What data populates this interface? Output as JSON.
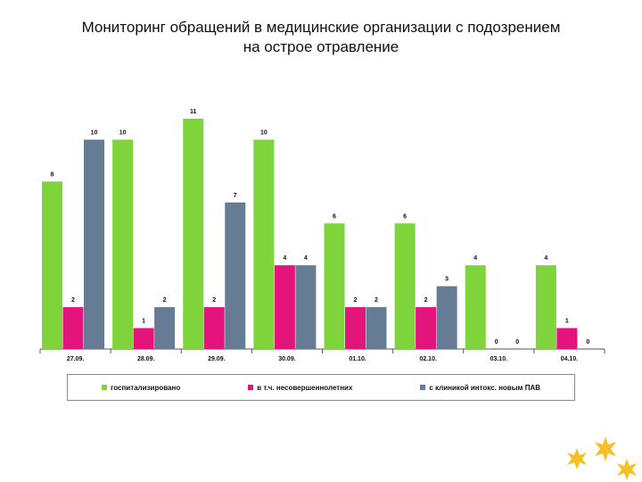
{
  "title": {
    "line1": "Мониторинг обращений в медицинские организации с подозрением",
    "line2": "на острое отравление"
  },
  "colors": {
    "green": "#7ed43a",
    "pink": "#e3157c",
    "slate": "#667b94"
  },
  "chart_data": {
    "type": "bar",
    "categories": [
      "27.09.",
      "28.09.",
      "29.09.",
      "30.09.",
      "01.10.",
      "02.10.",
      "03.10.",
      "04.10."
    ],
    "series": [
      {
        "name": "госпитализировано",
        "values": [
          8,
          10,
          11,
          10,
          6,
          6,
          4,
          4
        ]
      },
      {
        "name": "в т.ч. несовершеннолетних",
        "values": [
          2,
          1,
          2,
          4,
          2,
          2,
          0,
          1
        ]
      },
      {
        "name": "с клиникой интокс. новым ПАВ",
        "values": [
          10,
          2,
          7,
          4,
          2,
          3,
          0,
          0
        ]
      }
    ],
    "ylim": [
      0,
      11
    ],
    "legend_position": "bottom",
    "grid": false
  }
}
